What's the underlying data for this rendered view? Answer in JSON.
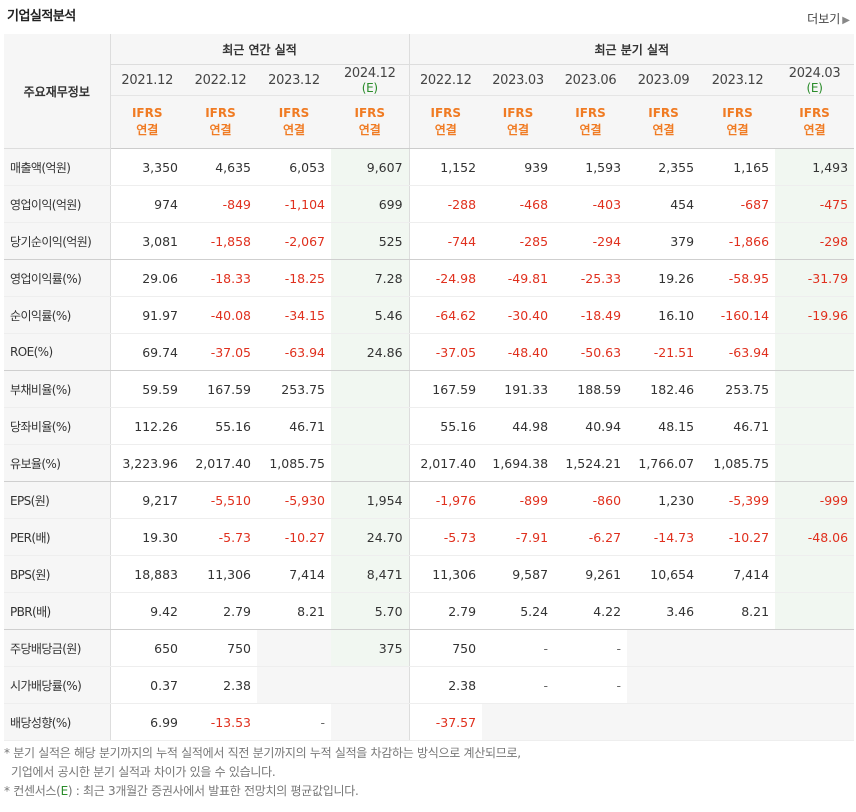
{
  "header": {
    "title": "기업실적분석",
    "more_label": "더보기",
    "more_icon": "chevron-right-icon"
  },
  "table": {
    "row_header_label": "주요재무정보",
    "groups": [
      "최근 연간 실적",
      "최근 분기 실적"
    ],
    "periods": [
      "2021.12",
      "2022.12",
      "2023.12",
      "2024.12",
      "2022.12",
      "2023.03",
      "2023.06",
      "2023.09",
      "2023.12",
      "2024.03"
    ],
    "estimate_marker": "(E)",
    "estimate_columns": [
      3,
      9
    ],
    "standard_line1": "IFRS",
    "standard_line2": "연결",
    "rows": [
      {
        "label": "매출액(억원)",
        "values": [
          "3,350",
          "4,635",
          "6,053",
          "9,607",
          "1,152",
          "939",
          "1,593",
          "2,355",
          "1,165",
          "1,493"
        ]
      },
      {
        "label": "영업이익(억원)",
        "values": [
          "974",
          "-849",
          "-1,104",
          "699",
          "-288",
          "-468",
          "-403",
          "454",
          "-687",
          "-475"
        ]
      },
      {
        "label": "당기순이익(억원)",
        "values": [
          "3,081",
          "-1,858",
          "-2,067",
          "525",
          "-744",
          "-285",
          "-294",
          "379",
          "-1,866",
          "-298"
        ]
      },
      {
        "label": "영업이익률(%)",
        "values": [
          "29.06",
          "-18.33",
          "-18.25",
          "7.28",
          "-24.98",
          "-49.81",
          "-25.33",
          "19.26",
          "-58.95",
          "-31.79"
        ]
      },
      {
        "label": "순이익률(%)",
        "values": [
          "91.97",
          "-40.08",
          "-34.15",
          "5.46",
          "-64.62",
          "-30.40",
          "-18.49",
          "16.10",
          "-160.14",
          "-19.96"
        ]
      },
      {
        "label": "ROE(%)",
        "values": [
          "69.74",
          "-37.05",
          "-63.94",
          "24.86",
          "-37.05",
          "-48.40",
          "-50.63",
          "-21.51",
          "-63.94",
          ""
        ]
      },
      {
        "label": "부채비율(%)",
        "values": [
          "59.59",
          "167.59",
          "253.75",
          "",
          "167.59",
          "191.33",
          "188.59",
          "182.46",
          "253.75",
          ""
        ]
      },
      {
        "label": "당좌비율(%)",
        "values": [
          "112.26",
          "55.16",
          "46.71",
          "",
          "55.16",
          "44.98",
          "40.94",
          "48.15",
          "46.71",
          ""
        ]
      },
      {
        "label": "유보율(%)",
        "values": [
          "3,223.96",
          "2,017.40",
          "1,085.75",
          "",
          "2,017.40",
          "1,694.38",
          "1,524.21",
          "1,766.07",
          "1,085.75",
          ""
        ]
      },
      {
        "label": "EPS(원)",
        "values": [
          "9,217",
          "-5,510",
          "-5,930",
          "1,954",
          "-1,976",
          "-899",
          "-860",
          "1,230",
          "-5,399",
          "-999"
        ]
      },
      {
        "label": "PER(배)",
        "values": [
          "19.30",
          "-5.73",
          "-10.27",
          "24.70",
          "-5.73",
          "-7.91",
          "-6.27",
          "-14.73",
          "-10.27",
          "-48.06"
        ]
      },
      {
        "label": "BPS(원)",
        "values": [
          "18,883",
          "11,306",
          "7,414",
          "8,471",
          "11,306",
          "9,587",
          "9,261",
          "10,654",
          "7,414",
          ""
        ]
      },
      {
        "label": "PBR(배)",
        "values": [
          "9.42",
          "2.79",
          "8.21",
          "5.70",
          "2.79",
          "5.24",
          "4.22",
          "3.46",
          "8.21",
          ""
        ]
      },
      {
        "label": "주당배당금(원)",
        "values": [
          "650",
          "750",
          "",
          "375",
          "750",
          "-",
          "-",
          "",
          "",
          ""
        ]
      },
      {
        "label": "시가배당률(%)",
        "values": [
          "0.37",
          "2.38",
          "",
          "",
          "2.38",
          "-",
          "-",
          "",
          "",
          ""
        ]
      },
      {
        "label": "배당성향(%)",
        "values": [
          "6.99",
          "-13.53",
          "-",
          "",
          "-37.57",
          "",
          "",
          "",
          "",
          ""
        ]
      }
    ],
    "blank_cells": [
      [
        13,
        2
      ],
      [
        13,
        7
      ],
      [
        13,
        8
      ],
      [
        13,
        9
      ],
      [
        14,
        2
      ],
      [
        14,
        3
      ],
      [
        14,
        7
      ],
      [
        14,
        8
      ],
      [
        14,
        9
      ],
      [
        15,
        3
      ],
      [
        15,
        5
      ],
      [
        15,
        6
      ],
      [
        15,
        7
      ],
      [
        15,
        8
      ],
      [
        15,
        9
      ]
    ],
    "section_breaks_after": [
      2,
      5,
      8,
      12
    ]
  },
  "notes": {
    "line1": "* 분기 실적은 해당 분기까지의 누적 실적에서 직전 분기까지의 누적 실적을 차감하는 방식으로 계산되므로,",
    "line2": "기업에서 공시한 분기 실적과 차이가 있을 수 있습니다.",
    "line3_prefix": "* 컨센서스(",
    "line3_marker": "E",
    "line3_suffix": ") : 최근 3개월간 증권사에서 발표한 전망치의 평균값입니다."
  }
}
